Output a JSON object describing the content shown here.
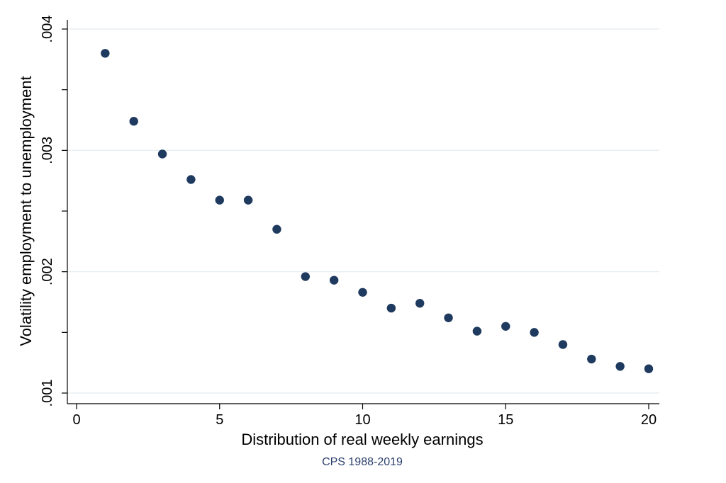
{
  "chart_data": {
    "type": "scatter",
    "xlabel": "Distribution of real weekly earnings",
    "ylabel": "Volatility employment to unemployment",
    "note": "CPS 1988-2019",
    "xlim": [
      0,
      20
    ],
    "ylim": [
      0.001,
      0.004
    ],
    "x_ticks": [
      {
        "value": 0,
        "label": "0"
      },
      {
        "value": 5,
        "label": "5"
      },
      {
        "value": 10,
        "label": "10"
      },
      {
        "value": 15,
        "label": "15"
      },
      {
        "value": 20,
        "label": "20"
      }
    ],
    "y_ticks": [
      {
        "value": 0.001,
        "label": ".001"
      },
      {
        "value": 0.002,
        "label": ".002"
      },
      {
        "value": 0.003,
        "label": ".003"
      },
      {
        "value": 0.004,
        "label": ".004"
      }
    ],
    "y_minor_ticks": [
      0.0015,
      0.0025,
      0.0035
    ],
    "grid": true,
    "marker_color": "#1f3a5f",
    "grid_color": "#e3ecf0",
    "note_color": "#2a3f6b",
    "points": [
      {
        "x": 1,
        "y": 0.0038
      },
      {
        "x": 2,
        "y": 0.00324
      },
      {
        "x": 3,
        "y": 0.00297
      },
      {
        "x": 4,
        "y": 0.00276
      },
      {
        "x": 5,
        "y": 0.00259
      },
      {
        "x": 6,
        "y": 0.00259
      },
      {
        "x": 7,
        "y": 0.00235
      },
      {
        "x": 8,
        "y": 0.00196
      },
      {
        "x": 9,
        "y": 0.00193
      },
      {
        "x": 10,
        "y": 0.00183
      },
      {
        "x": 11,
        "y": 0.0017
      },
      {
        "x": 12,
        "y": 0.00174
      },
      {
        "x": 13,
        "y": 0.00162
      },
      {
        "x": 14,
        "y": 0.00151
      },
      {
        "x": 15,
        "y": 0.00155
      },
      {
        "x": 16,
        "y": 0.0015
      },
      {
        "x": 17,
        "y": 0.0014
      },
      {
        "x": 18,
        "y": 0.00128
      },
      {
        "x": 19,
        "y": 0.00122
      },
      {
        "x": 20,
        "y": 0.0012
      }
    ]
  }
}
